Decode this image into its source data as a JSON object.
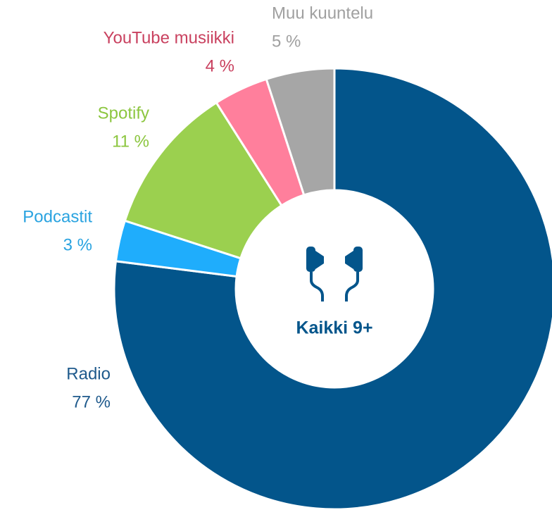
{
  "chart_data": {
    "type": "donut",
    "categories": [
      "Radio",
      "Podcastit",
      "Spotify",
      "YouTube musiikki",
      "Muu kuuntelu"
    ],
    "values": [
      77,
      3,
      11,
      4,
      5
    ],
    "value_labels": [
      "77 %",
      "3 %",
      "11 %",
      "4 %",
      "5 %"
    ],
    "colors": [
      "#03558b",
      "#1fadfc",
      "#9bd04f",
      "#ff7f9c",
      "#a6a6a6"
    ],
    "label_colors": [
      "#1f5a8c",
      "#2aa3e0",
      "#8cc63f",
      "#c9415f",
      "#a0a0a0"
    ],
    "center_label": "Kaikki 9+"
  }
}
